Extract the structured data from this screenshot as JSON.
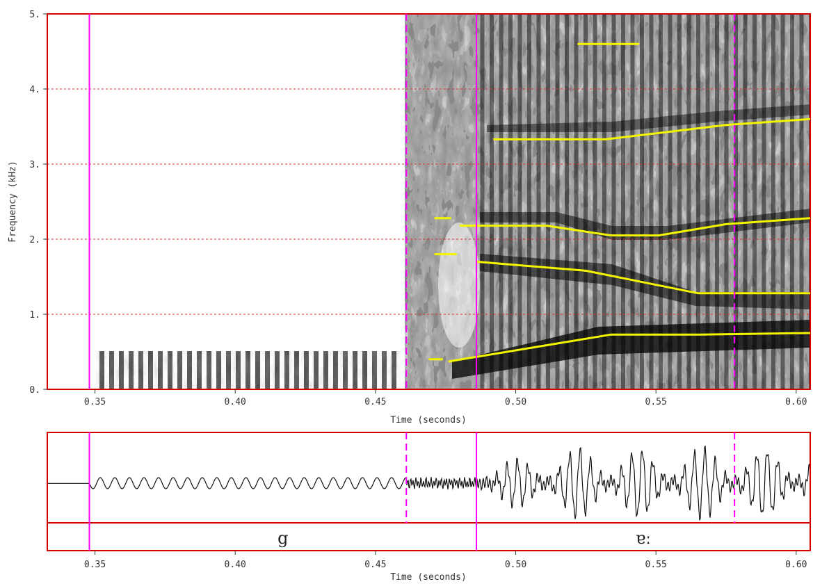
{
  "spectrogram": {
    "y_axis_label": "Frequency (kHz)",
    "x_axis_label": "Time (seconds)",
    "y_tick_labels": [
      "0.",
      "1.",
      "2.",
      "3.",
      "4.",
      "5."
    ],
    "x_tick_labels": [
      "0.35",
      "0.40",
      "0.45",
      "0.50",
      "0.55",
      "0.60"
    ]
  },
  "waveform": {
    "x_axis_label": "Time (seconds)",
    "x_tick_labels": [
      "0.35",
      "0.40",
      "0.45",
      "0.50",
      "0.55",
      "0.60"
    ]
  },
  "segments": [
    {
      "label": "g",
      "start": 0.348,
      "end": 0.486
    },
    {
      "label": "ɐː",
      "start": 0.486,
      "end": 0.605
    }
  ],
  "markers": {
    "solid": [
      0.348,
      0.486
    ],
    "dashed": [
      0.461,
      0.578
    ]
  },
  "chart_data": {
    "type": "line",
    "title": "",
    "xlabel": "Time (seconds)",
    "ylabel": "Frequency (kHz)",
    "xlim": [
      0.333,
      0.605
    ],
    "ylim": [
      0,
      5
    ],
    "grid": true,
    "series": [
      {
        "x": [
          0.469,
          0.474
        ],
        "y": [
          0.4,
          0.4
        ]
      },
      {
        "x": [
          0.476,
          0.534,
          0.566,
          0.605
        ],
        "y": [
          0.37,
          0.73,
          0.73,
          0.75
        ]
      },
      {
        "x": [
          0.471,
          0.479
        ],
        "y": [
          1.8,
          1.8
        ]
      },
      {
        "x": [
          0.486,
          0.525,
          0.565,
          0.605
        ],
        "y": [
          1.7,
          1.58,
          1.28,
          1.28
        ]
      },
      {
        "x": [
          0.471,
          0.477
        ],
        "y": [
          2.28,
          2.28
        ]
      },
      {
        "x": [
          0.48,
          0.511,
          0.534,
          0.551,
          0.575,
          0.605
        ],
        "y": [
          2.18,
          2.18,
          2.05,
          2.05,
          2.2,
          2.28
        ]
      },
      {
        "x": [
          0.492,
          0.532,
          0.575,
          0.605
        ],
        "y": [
          3.33,
          3.33,
          3.52,
          3.6
        ]
      },
      {
        "x": [
          0.522,
          0.544
        ],
        "y": [
          4.6,
          4.6
        ]
      }
    ],
    "colors": {
      "formant": "#f5f500",
      "frame": "#d40000",
      "marker": "#ff00ff",
      "grid": "#e03030"
    }
  }
}
